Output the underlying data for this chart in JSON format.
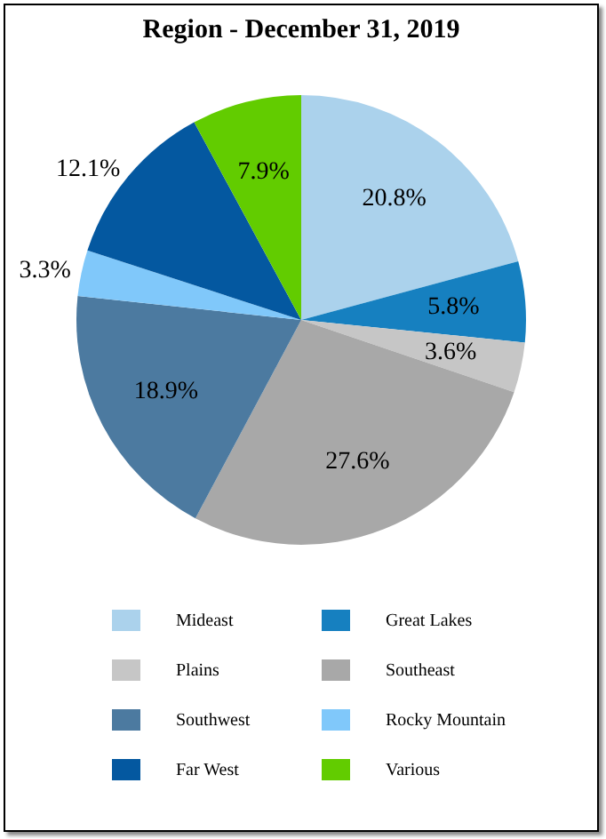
{
  "chart_data": {
    "type": "pie",
    "title": "Region - December 31, 2019",
    "categories": [
      "Mideast",
      "Great Lakes",
      "Plains",
      "Southeast",
      "Southwest",
      "Rocky Mountain",
      "Far West",
      "Various"
    ],
    "values": [
      20.8,
      5.8,
      3.6,
      27.6,
      18.9,
      3.3,
      12.1,
      7.9
    ],
    "colors": [
      "#abd2ec",
      "#1680c0",
      "#c6c6c6",
      "#a8a8a8",
      "#4c7aa0",
      "#80c8fa",
      "#0458a0",
      "#62cc00"
    ],
    "value_labels": [
      "20.8%",
      "5.8%",
      "3.6%",
      "27.6%",
      "18.9%",
      "3.3%",
      "12.1%",
      "7.9%"
    ],
    "legend": "bottom"
  }
}
